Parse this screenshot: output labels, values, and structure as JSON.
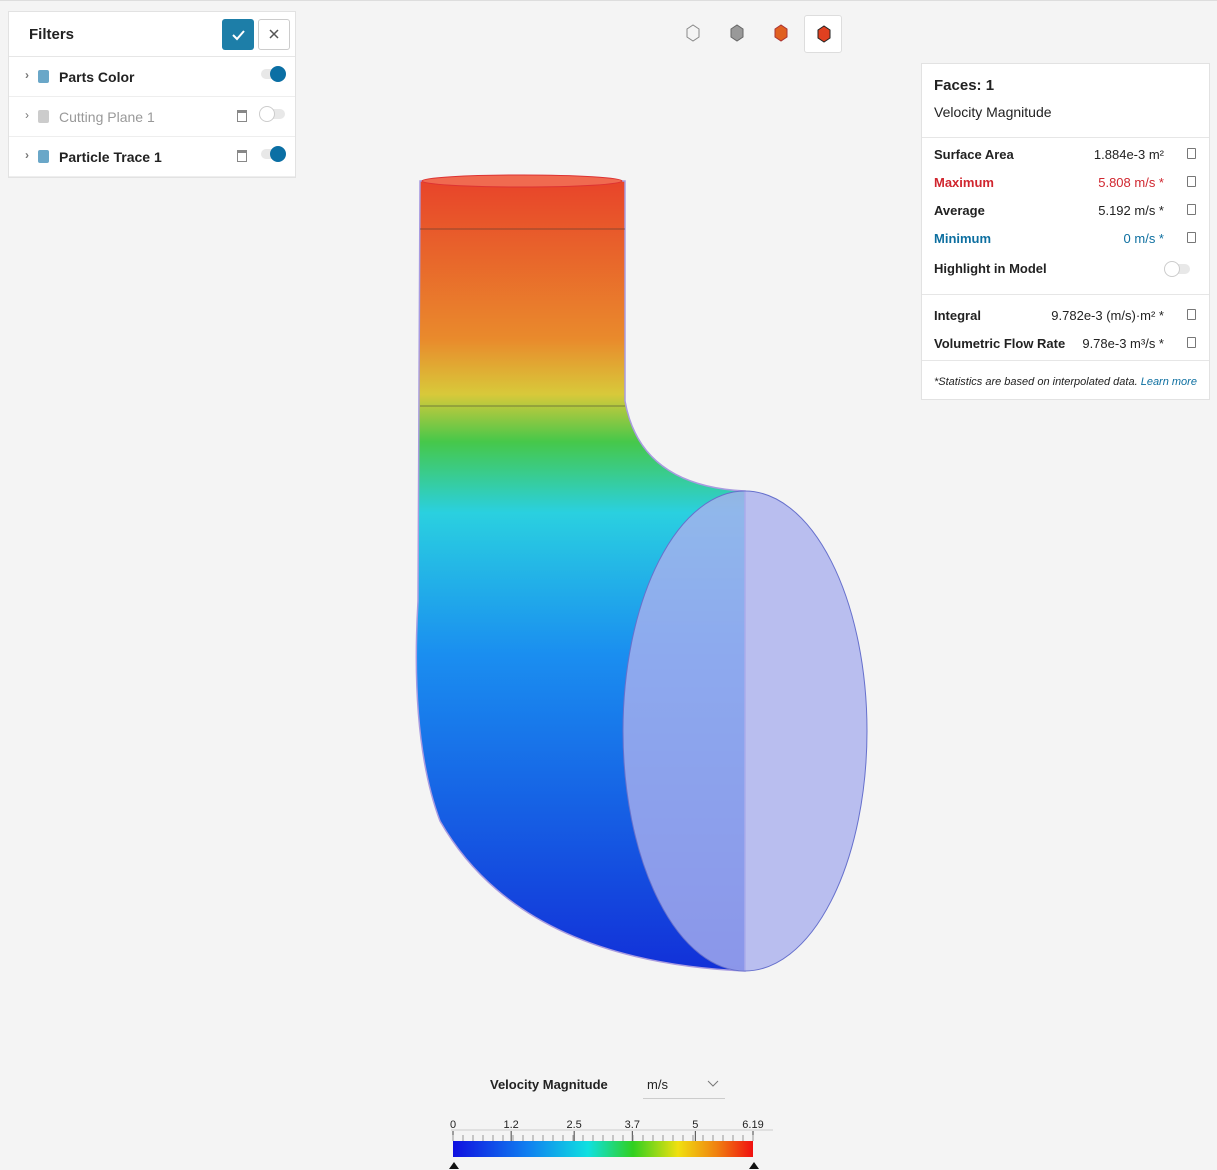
{
  "filters": {
    "title": "Filters",
    "items": [
      {
        "label": "Parts Color",
        "enabled": true
      },
      {
        "label": "Cutting Plane 1",
        "enabled": false
      },
      {
        "label": "Particle Trace 1",
        "enabled": true
      }
    ]
  },
  "stats": {
    "title": "Faces: 1",
    "subtitle": "Velocity Magnitude",
    "rows": [
      {
        "label": "Surface Area",
        "value": "1.884e-3 m²"
      },
      {
        "label": "Maximum",
        "value": "5.808 m/s *"
      },
      {
        "label": "Average",
        "value": "5.192 m/s *"
      },
      {
        "label": "Minimum",
        "value": "0 m/s *"
      }
    ],
    "toggle_label": "Highlight in Model",
    "flow_rows": [
      {
        "label": "Integral",
        "value": "9.782e-3 (m/s)·m² *"
      },
      {
        "label": "Volumetric Flow Rate",
        "value": "9.78e-3 m³/s *"
      }
    ],
    "note": "*Statistics are based on interpolated data.",
    "link": "Learn more"
  },
  "legend": {
    "title": "Velocity Magnitude",
    "unit": "m/s",
    "ticks": [
      0,
      1.2,
      2.5,
      3.7,
      5,
      6.19
    ]
  }
}
